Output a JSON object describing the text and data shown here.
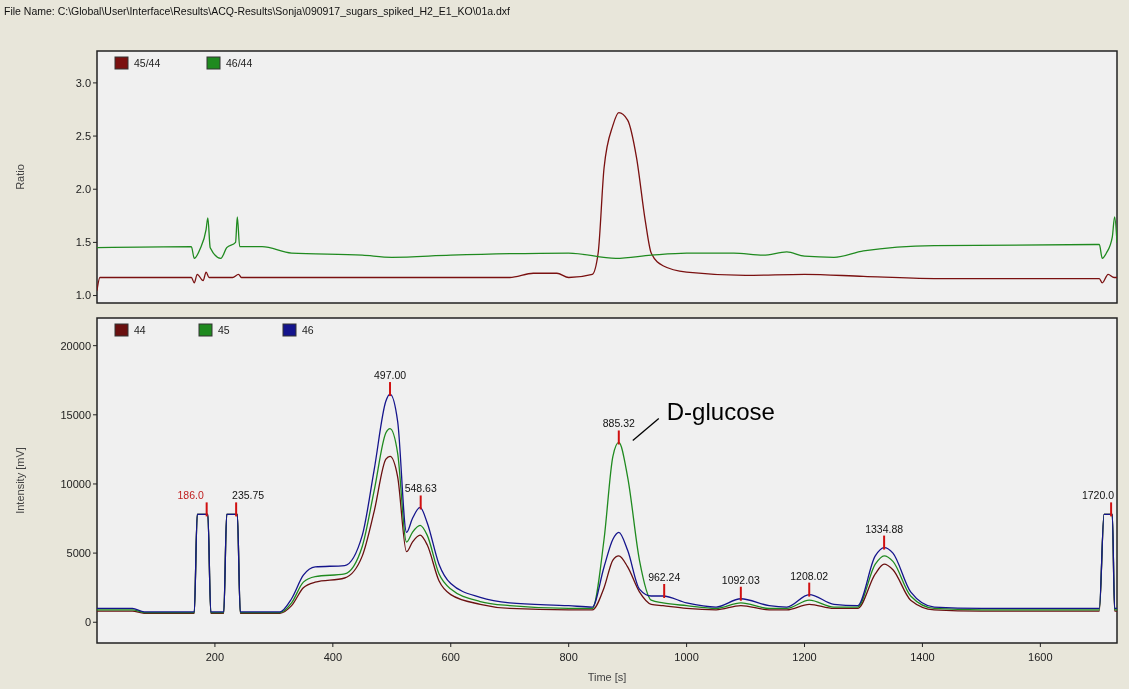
{
  "chart_data": [
    {
      "type": "line",
      "title": "File Name: C:\\Global\\User\\Interface\\Results\\ACQ-Results\\Sonja\\090917_sugars_spiked_H2_E1_KO\\01a.dxf",
      "ylabel": "Ratio",
      "xlim": [
        0,
        1730
      ],
      "ylim": [
        0.93,
        3.3
      ],
      "yticks": [
        {
          "value": 1,
          "label": "1.0"
        },
        1.5,
        {
          "value": 2,
          "label": "2.0"
        },
        2.5,
        {
          "value": 3,
          "label": "3.0"
        }
      ],
      "tick_labels": "y",
      "legend": "top left",
      "grid": false,
      "series": [
        {
          "name": "45/44",
          "color": "#7a1010",
          "x": [
            0,
            5,
            160,
            165,
            170,
            180,
            185,
            190,
            230,
            240,
            245,
            700,
            740,
            780,
            800,
            840,
            850,
            860,
            875,
            885,
            900,
            915,
            930,
            940,
            960,
            1000,
            1100,
            1200,
            1300,
            1420,
            1700,
            1705,
            1715,
            1725,
            1730
          ],
          "values": [
            1.05,
            1.17,
            1.17,
            1.12,
            1.2,
            1.14,
            1.22,
            1.17,
            1.17,
            1.2,
            1.17,
            1.17,
            1.21,
            1.21,
            1.17,
            1.2,
            1.4,
            2.2,
            2.6,
            2.72,
            2.65,
            2.3,
            1.7,
            1.4,
            1.28,
            1.22,
            1.19,
            1.2,
            1.18,
            1.16,
            1.16,
            1.12,
            1.2,
            1.17,
            1.17
          ]
        },
        {
          "name": "46/44",
          "color": "#1f8a1f",
          "x": [
            0,
            160,
            165,
            175,
            185,
            188,
            192,
            210,
            220,
            235,
            238,
            242,
            280,
            330,
            450,
            500,
            600,
            800,
            880,
            940,
            1000,
            1080,
            1130,
            1170,
            1200,
            1250,
            1300,
            1420,
            1700,
            1705,
            1712,
            1722,
            1726,
            1730
          ],
          "values": [
            1.45,
            1.46,
            1.35,
            1.44,
            1.62,
            1.73,
            1.45,
            1.35,
            1.45,
            1.5,
            1.74,
            1.46,
            1.46,
            1.4,
            1.38,
            1.36,
            1.38,
            1.4,
            1.35,
            1.38,
            1.4,
            1.4,
            1.38,
            1.41,
            1.37,
            1.36,
            1.42,
            1.47,
            1.48,
            1.35,
            1.4,
            1.55,
            1.74,
            1.5
          ]
        }
      ]
    },
    {
      "type": "line",
      "xlabel": "Time [s]",
      "ylabel": "Intensity [mV]",
      "xlim": [
        0,
        1730
      ],
      "xticks": [
        200,
        400,
        600,
        800,
        1000,
        1200,
        1400,
        1600
      ],
      "ylim": [
        -1500,
        22000
      ],
      "yticks": [
        0,
        5000,
        10000,
        15000,
        20000
      ],
      "legend": "top left",
      "grid": false,
      "x": [
        0,
        5,
        60,
        80,
        165,
        170,
        188,
        193,
        215,
        220,
        238,
        243,
        310,
        330,
        350,
        370,
        420,
        450,
        470,
        490,
        497,
        510,
        525,
        535,
        548,
        560,
        580,
        600,
        650,
        700,
        800,
        840,
        860,
        875,
        885,
        900,
        920,
        940,
        960,
        1000,
        1050,
        1092,
        1140,
        1170,
        1208,
        1250,
        1290,
        1320,
        1335,
        1350,
        1380,
        1420,
        1500,
        1700,
        1708,
        1712,
        1722,
        1726,
        1730
      ],
      "series": [
        {
          "name": "44",
          "color": "#6a1010",
          "values": [
            800,
            800,
            800,
            650,
            650,
            7800,
            7800,
            650,
            650,
            7800,
            7800,
            650,
            650,
            1200,
            2500,
            2900,
            3200,
            4800,
            8000,
            11800,
            12000,
            10500,
            5100,
            5800,
            6300,
            5600,
            3000,
            2000,
            1300,
            1000,
            900,
            900,
            2500,
            4500,
            4800,
            4000,
            2200,
            1300,
            1200,
            1000,
            900,
            1200,
            900,
            900,
            1300,
            1000,
            1000,
            3500,
            4200,
            3800,
            1600,
            900,
            800,
            800,
            7800,
            7800,
            7800,
            800,
            800
          ]
        },
        {
          "name": "45",
          "color": "#1f8a1f",
          "values": [
            900,
            900,
            900,
            700,
            700,
            7800,
            7800,
            700,
            700,
            7800,
            7800,
            700,
            700,
            1400,
            2900,
            3300,
            3500,
            5500,
            9500,
            13700,
            14000,
            12200,
            5800,
            6500,
            7000,
            6300,
            3500,
            2400,
            1500,
            1200,
            1000,
            1000,
            6000,
            12000,
            13000,
            10500,
            4500,
            1600,
            1400,
            1200,
            1000,
            1400,
            1000,
            1000,
            1600,
            1100,
            1100,
            4200,
            4800,
            4400,
            1900,
            1000,
            900,
            900,
            7800,
            7800,
            7800,
            900,
            900
          ]
        },
        {
          "name": "46",
          "color": "#14148c",
          "values": [
            1000,
            1000,
            1000,
            750,
            750,
            7800,
            7800,
            750,
            750,
            7800,
            7800,
            750,
            750,
            1700,
            3400,
            4000,
            4100,
            6300,
            11000,
            16000,
            16500,
            14500,
            6500,
            7500,
            8300,
            7200,
            4200,
            2800,
            1800,
            1400,
            1200,
            1100,
            4000,
            6000,
            6500,
            5200,
            2400,
            1900,
            1900,
            1400,
            1100,
            1700,
            1200,
            1100,
            2000,
            1300,
            1200,
            4800,
            5400,
            5000,
            2200,
            1100,
            1000,
            1000,
            7800,
            7800,
            7800,
            1000,
            1000
          ]
        }
      ],
      "annotations": [
        {
          "text": "D-glucose",
          "x": 885,
          "y": 13000
        },
        {
          "text": "186.0",
          "x": 186,
          "y": 7800
        },
        {
          "text": "235.75",
          "x": 236,
          "y": 7800
        },
        {
          "text": "497.00",
          "x": 497,
          "y": 16500
        },
        {
          "text": "548.63",
          "x": 549,
          "y": 8300
        },
        {
          "text": "885.32",
          "x": 885,
          "y": 13000
        },
        {
          "text": "962.24",
          "x": 962,
          "y": 1900
        },
        {
          "text": "1092.03",
          "x": 1092,
          "y": 1700
        },
        {
          "text": "1208.02",
          "x": 1208,
          "y": 2000
        },
        {
          "text": "1334.88",
          "x": 1335,
          "y": 5400
        },
        {
          "text": "1720.0",
          "x": 1720,
          "y": 7800
        }
      ]
    }
  ]
}
